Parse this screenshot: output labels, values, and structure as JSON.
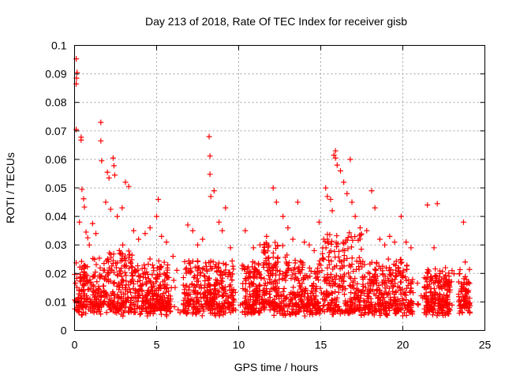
{
  "chart_data": {
    "type": "scatter",
    "title": "Day 213 of 2018, Rate Of TEC Index for receiver gisb",
    "xlabel": "GPS time / hours",
    "ylabel": "ROTI / TECUs",
    "xlim": [
      0,
      25
    ],
    "ylim": [
      0,
      0.1
    ],
    "x_ticks": [
      "0",
      "5",
      "10",
      "15",
      "20",
      "25"
    ],
    "y_ticks": [
      "0",
      "0.01",
      "0.02",
      "0.03",
      "0.04",
      "0.05",
      "0.06",
      "0.07",
      "0.08",
      "0.09",
      "0.1"
    ],
    "grid": true,
    "marker": "+",
    "color": "#ff0000",
    "series": [
      {
        "points": [
          [
            0.1,
            0.0953
          ],
          [
            0.15,
            0.0905
          ],
          [
            0.12,
            0.0885
          ],
          [
            0.1,
            0.0865
          ],
          [
            0.1,
            0.0705
          ],
          [
            0.4,
            0.0678
          ],
          [
            0.4,
            0.0668
          ],
          [
            0.45,
            0.0495
          ],
          [
            0.55,
            0.0462
          ],
          [
            0.6,
            0.0433
          ],
          [
            0.3,
            0.038
          ],
          [
            0.7,
            0.0345
          ],
          [
            0.8,
            0.0325
          ],
          [
            0.9,
            0.03
          ],
          [
            1.1,
            0.0375
          ],
          [
            1.3,
            0.034
          ],
          [
            1.6,
            0.073
          ],
          [
            1.6,
            0.0665
          ],
          [
            1.65,
            0.0595
          ],
          [
            2.0,
            0.0555
          ],
          [
            2.1,
            0.0535
          ],
          [
            1.9,
            0.045
          ],
          [
            2.35,
            0.0605
          ],
          [
            2.4,
            0.0578
          ],
          [
            2.45,
            0.0545
          ],
          [
            2.2,
            0.0425
          ],
          [
            2.6,
            0.04
          ],
          [
            2.9,
            0.043
          ],
          [
            3.1,
            0.052
          ],
          [
            3.3,
            0.0505
          ],
          [
            3.6,
            0.035
          ],
          [
            3.9,
            0.032
          ],
          [
            4.3,
            0.034
          ],
          [
            4.6,
            0.036
          ],
          [
            5.0,
            0.04
          ],
          [
            5.1,
            0.046
          ],
          [
            5.3,
            0.033
          ],
          [
            5.6,
            0.031
          ],
          [
            6.0,
            0.026
          ],
          [
            6.9,
            0.037
          ],
          [
            7.2,
            0.035
          ],
          [
            7.5,
            0.03
          ],
          [
            7.8,
            0.032
          ],
          [
            8.2,
            0.068
          ],
          [
            8.25,
            0.0612
          ],
          [
            8.25,
            0.0548
          ],
          [
            8.3,
            0.047
          ],
          [
            8.5,
            0.049
          ],
          [
            8.8,
            0.038
          ],
          [
            9.0,
            0.035
          ],
          [
            9.2,
            0.043
          ],
          [
            9.5,
            0.029
          ],
          [
            10.4,
            0.035
          ],
          [
            10.9,
            0.029
          ],
          [
            11.3,
            0.03
          ],
          [
            11.7,
            0.033
          ],
          [
            12.1,
            0.05
          ],
          [
            12.3,
            0.045
          ],
          [
            12.7,
            0.04
          ],
          [
            13.0,
            0.036
          ],
          [
            13.3,
            0.032
          ],
          [
            13.6,
            0.045
          ],
          [
            14.0,
            0.031
          ],
          [
            14.3,
            0.03
          ],
          [
            14.6,
            0.028
          ],
          [
            14.9,
            0.038
          ],
          [
            15.3,
            0.05
          ],
          [
            15.4,
            0.047
          ],
          [
            15.6,
            0.046
          ],
          [
            15.7,
            0.042
          ],
          [
            15.8,
            0.0615
          ],
          [
            15.9,
            0.063
          ],
          [
            15.9,
            0.0605
          ],
          [
            16.0,
            0.058
          ],
          [
            16.2,
            0.056
          ],
          [
            16.4,
            0.052
          ],
          [
            16.6,
            0.048
          ],
          [
            16.8,
            0.06
          ],
          [
            16.9,
            0.045
          ],
          [
            17.1,
            0.04
          ],
          [
            17.4,
            0.036
          ],
          [
            17.8,
            0.035
          ],
          [
            18.1,
            0.049
          ],
          [
            18.3,
            0.043
          ],
          [
            18.6,
            0.032
          ],
          [
            18.9,
            0.03
          ],
          [
            19.2,
            0.033
          ],
          [
            19.5,
            0.031
          ],
          [
            19.9,
            0.04
          ],
          [
            20.2,
            0.031
          ],
          [
            20.5,
            0.029
          ],
          [
            21.5,
            0.044
          ],
          [
            21.9,
            0.029
          ],
          [
            22.1,
            0.0445
          ],
          [
            22.6,
            0.022
          ],
          [
            23.0,
            0.021
          ],
          [
            23.7,
            0.038
          ],
          [
            23.8,
            0.024
          ],
          [
            24.0,
            0.014
          ]
        ]
      }
    ]
  }
}
